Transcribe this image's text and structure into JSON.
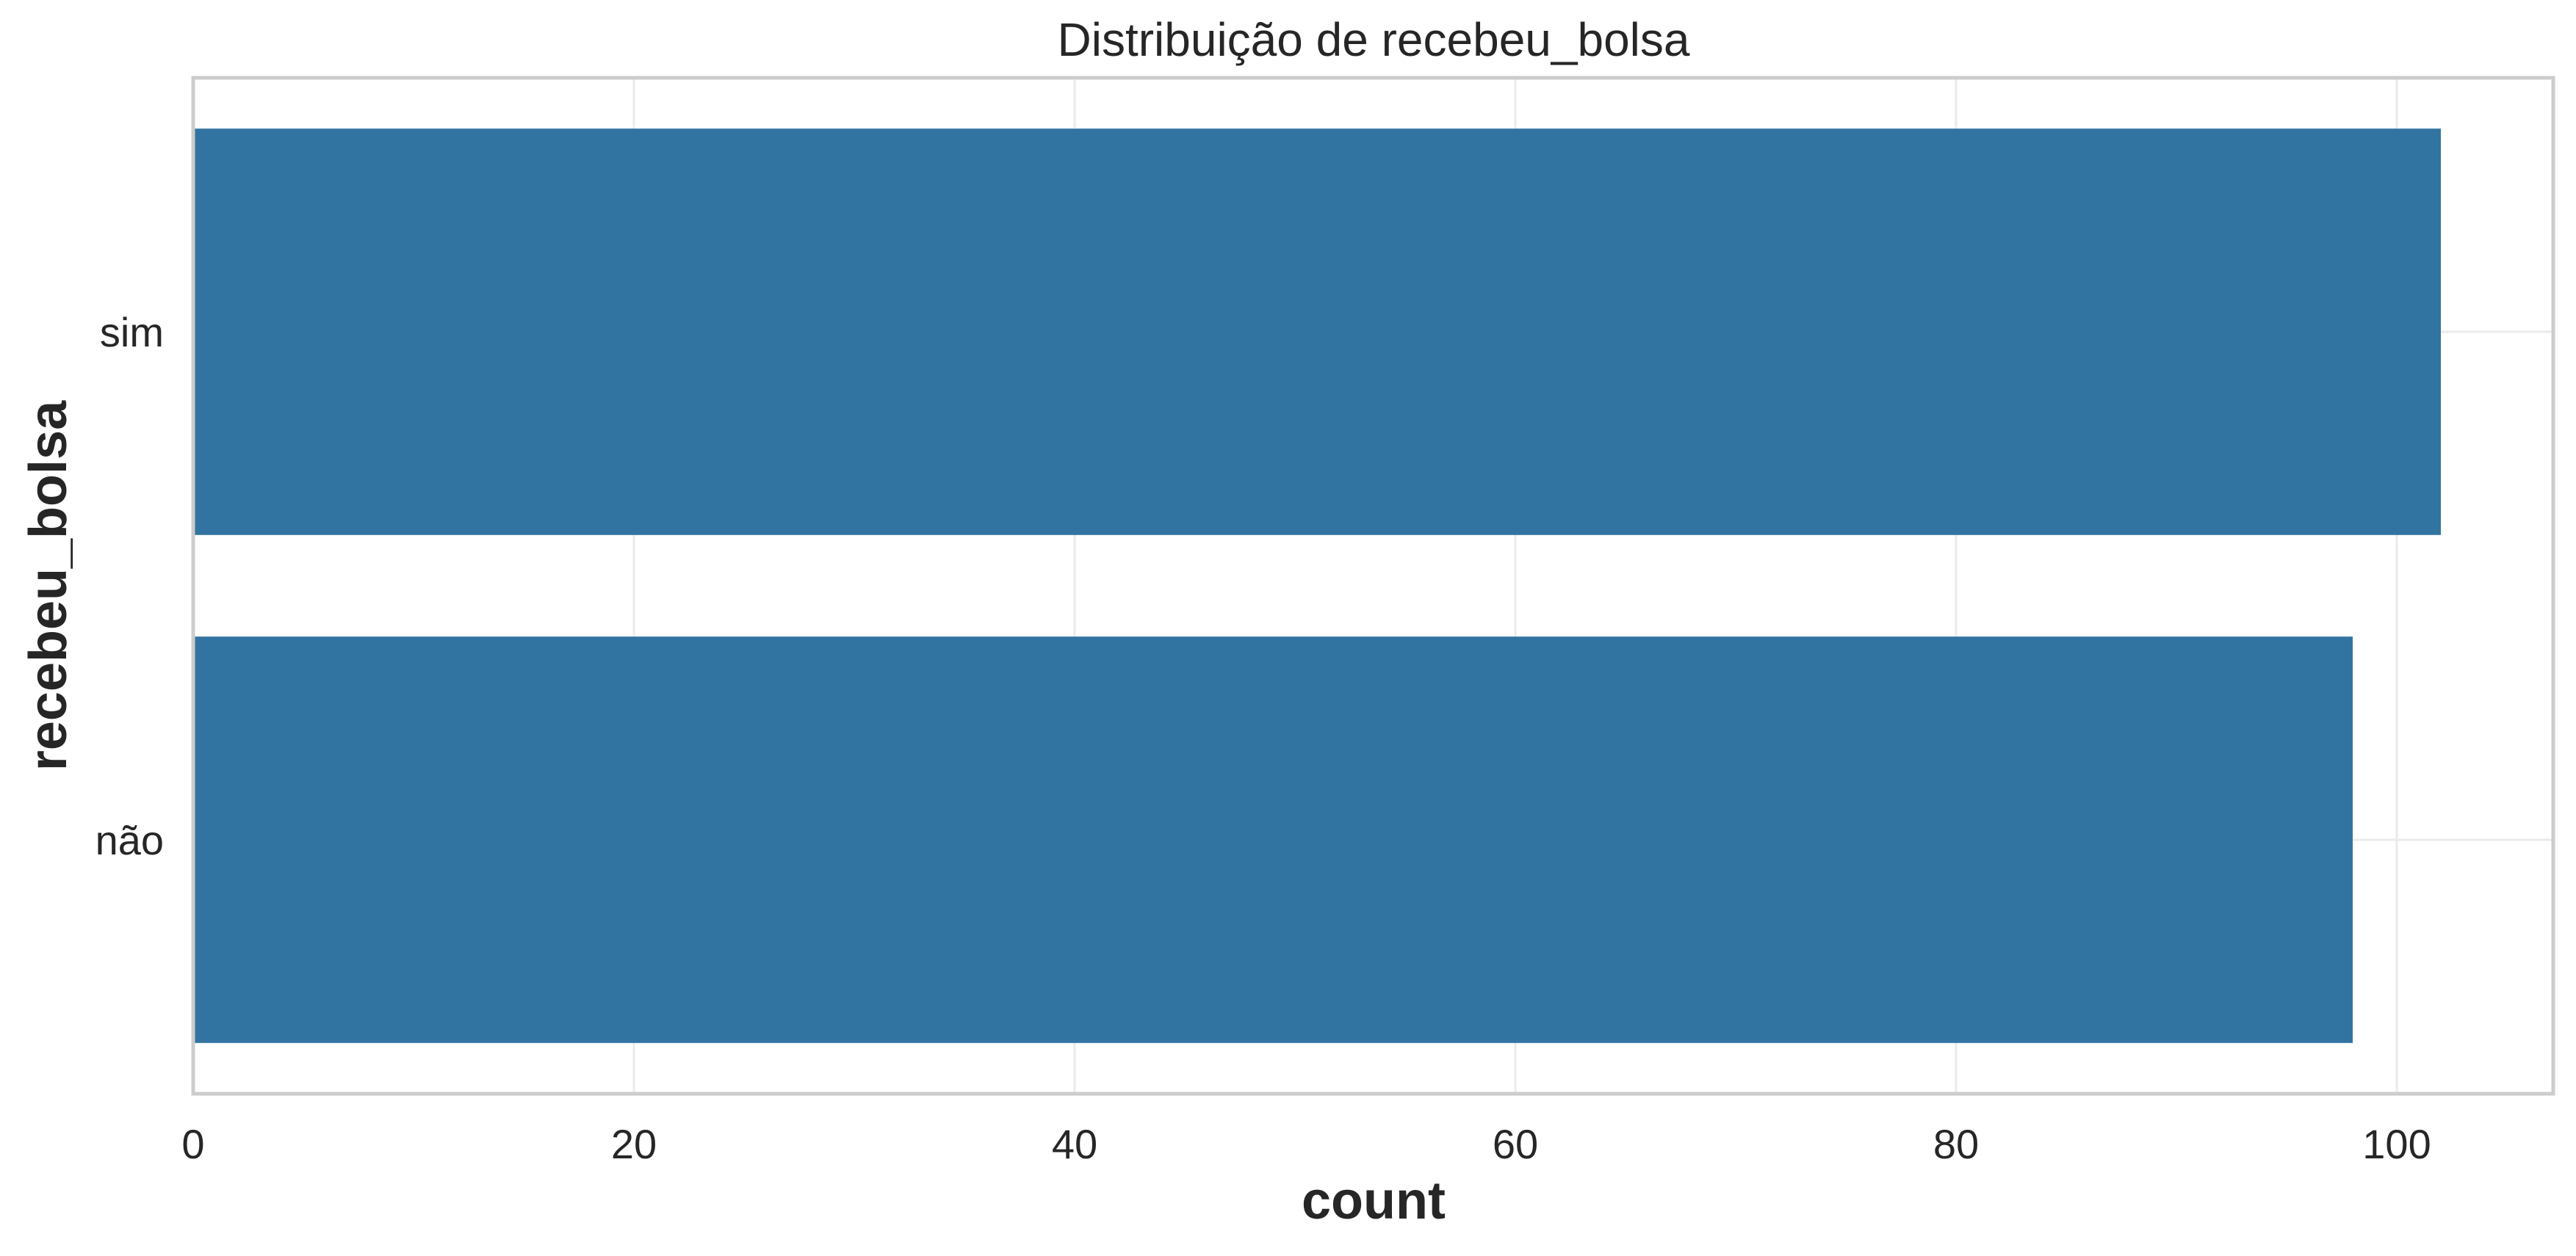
{
  "chart_data": {
    "type": "bar",
    "orientation": "horizontal",
    "title": "Distribuição de recebeu_bolsa",
    "xlabel": "count",
    "ylabel": "recebeu_bolsa",
    "categories": [
      "sim",
      "não"
    ],
    "values": [
      102,
      98
    ],
    "xlim": [
      0,
      107.1
    ],
    "xticks": [
      0,
      20,
      40,
      60,
      80,
      100
    ],
    "grid": true,
    "legend": "none",
    "bar_color": "#3274a1"
  }
}
